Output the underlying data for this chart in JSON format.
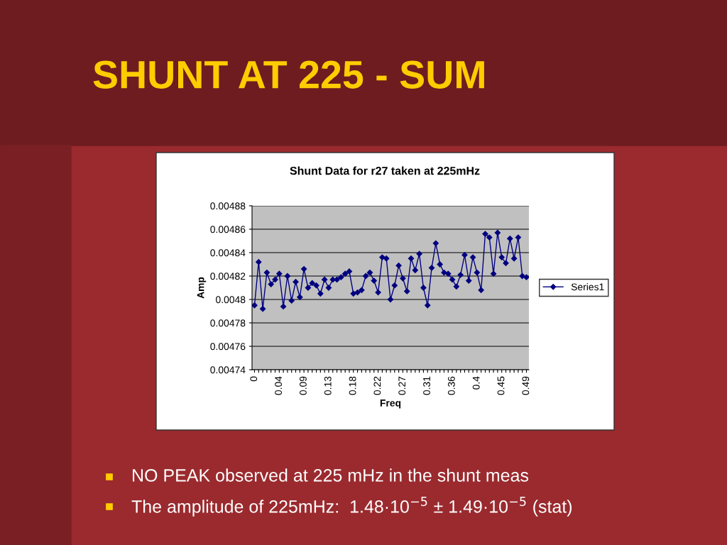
{
  "chart_data": {
    "type": "line",
    "title": "SHUNT AT 225 - SUM",
    "subtitle": "Shunt Data for r27 taken at 225mHz",
    "xlabel": "Freq",
    "ylabel": "Amp",
    "categories": [
      "0",
      null,
      null,
      null,
      null,
      null,
      "0.04",
      null,
      null,
      null,
      null,
      null,
      "0.09",
      null,
      null,
      null,
      null,
      null,
      "0.13",
      null,
      null,
      null,
      null,
      null,
      "0.18",
      null,
      null,
      null,
      null,
      null,
      "0.22",
      null,
      null,
      null,
      null,
      null,
      "0.27",
      null,
      null,
      null,
      null,
      null,
      "0.31",
      null,
      null,
      null,
      null,
      null,
      "0.36",
      null,
      null,
      null,
      null,
      null,
      "0.4",
      null,
      null,
      null,
      null,
      null,
      "0.45",
      null,
      null,
      null,
      null,
      null,
      "0.49"
    ],
    "series": [
      {
        "name": "Series1",
        "color": "#000080",
        "values": [
          0.004795,
          0.004832,
          0.004792,
          0.004823,
          0.004813,
          0.004817,
          0.004822,
          0.004794,
          0.00482,
          0.004799,
          0.004815,
          0.004802,
          0.004826,
          0.00481,
          0.004814,
          0.004812,
          0.004805,
          0.004817,
          0.00481,
          0.004817,
          0.004817,
          0.004819,
          0.004822,
          0.004824,
          0.004805,
          0.004806,
          0.004808,
          0.00482,
          0.004823,
          0.004816,
          0.004806,
          0.004836,
          0.004835,
          0.0048,
          0.004812,
          0.004829,
          0.004818,
          0.004807,
          0.004835,
          0.004825,
          0.004839,
          0.00481,
          0.004795,
          0.004827,
          0.004848,
          0.00483,
          0.004823,
          0.004822,
          0.004817,
          0.004811,
          0.004821,
          0.004838,
          0.004816,
          0.004836,
          0.004823,
          0.004808,
          0.004856,
          0.004853,
          0.004822,
          0.004857,
          0.004836,
          0.004831,
          0.004852,
          0.004835,
          0.004853,
          0.00482,
          0.004819
        ]
      }
    ],
    "ylim": [
      0.00474,
      0.00488
    ],
    "yticks": [
      0.00474,
      0.00476,
      0.00478,
      0.0048,
      0.00482,
      0.00484,
      0.00486,
      0.00488
    ],
    "grid": "y",
    "legend": "right",
    "marker": "diamond",
    "line_style": "solid",
    "annotations": [
      "NO PEAK observed at 225 mHz in the shunt meas",
      "The amplitude of 225mHz:  1.48·10$^{−5}$ ± 1.49·10$^{−5}$ (stat)"
    ]
  }
}
